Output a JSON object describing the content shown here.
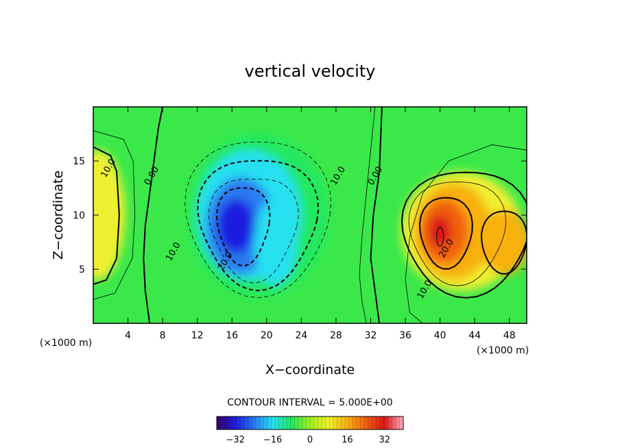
{
  "chart_data": {
    "type": "heatmap",
    "title": "vertical velocity",
    "xlabel": "X−coordinate",
    "ylabel": "Z−coordinate",
    "x_unit": "(×1000 m)",
    "y_unit": "(×1000 m)",
    "xlim": [
      0,
      50
    ],
    "ylim": [
      0,
      20
    ],
    "x_ticks": [
      4,
      8,
      12,
      16,
      20,
      24,
      28,
      32,
      36,
      40,
      44,
      48
    ],
    "y_ticks": [
      5,
      10,
      15
    ],
    "contour_interval_text": "CONTOUR INTERVAL = 5.000E+00",
    "contour_interval": 5,
    "contour_labels": [
      {
        "text": "10.0",
        "x": 2,
        "z": 14.2
      },
      {
        "text": "0.00",
        "x": 7,
        "z": 13.5
      },
      {
        "text": "10.0",
        "x": 9.5,
        "z": 6.5
      },
      {
        "text": "20.0",
        "x": 15.5,
        "z": 5.6
      },
      {
        "text": "10.0",
        "x": 28.5,
        "z": 13.5
      },
      {
        "text": "0.00",
        "x": 32.8,
        "z": 13.5
      },
      {
        "text": "20.0",
        "x": 41,
        "z": 6.8
      },
      {
        "text": "10.0",
        "x": 38.5,
        "z": 3.0
      }
    ],
    "features": [
      {
        "type": "updraft",
        "x": 0.5,
        "z": 10,
        "peak": 12
      },
      {
        "type": "downdraft",
        "x": 17,
        "z": 9,
        "peak": -28
      },
      {
        "type": "downdraft",
        "x": 21,
        "z": 7,
        "peak": -22
      },
      {
        "type": "updraft",
        "x": 40.5,
        "z": 8.5,
        "peak": 25
      },
      {
        "type": "updraft",
        "x": 47.5,
        "z": 7.5,
        "peak": 20
      }
    ],
    "colorbar": {
      "min": -40,
      "max": 40,
      "ticks": [
        "−32",
        "−16",
        "0",
        "16",
        "32"
      ],
      "tick_values": [
        -32,
        -16,
        0,
        16,
        32
      ],
      "colors": [
        "#3a006a",
        "#1c1ce0",
        "#2a7af0",
        "#28e0f0",
        "#20e860",
        "#a0f020",
        "#f0f030",
        "#f8b010",
        "#f06010",
        "#d81818",
        "#ffb0c0"
      ]
    }
  }
}
